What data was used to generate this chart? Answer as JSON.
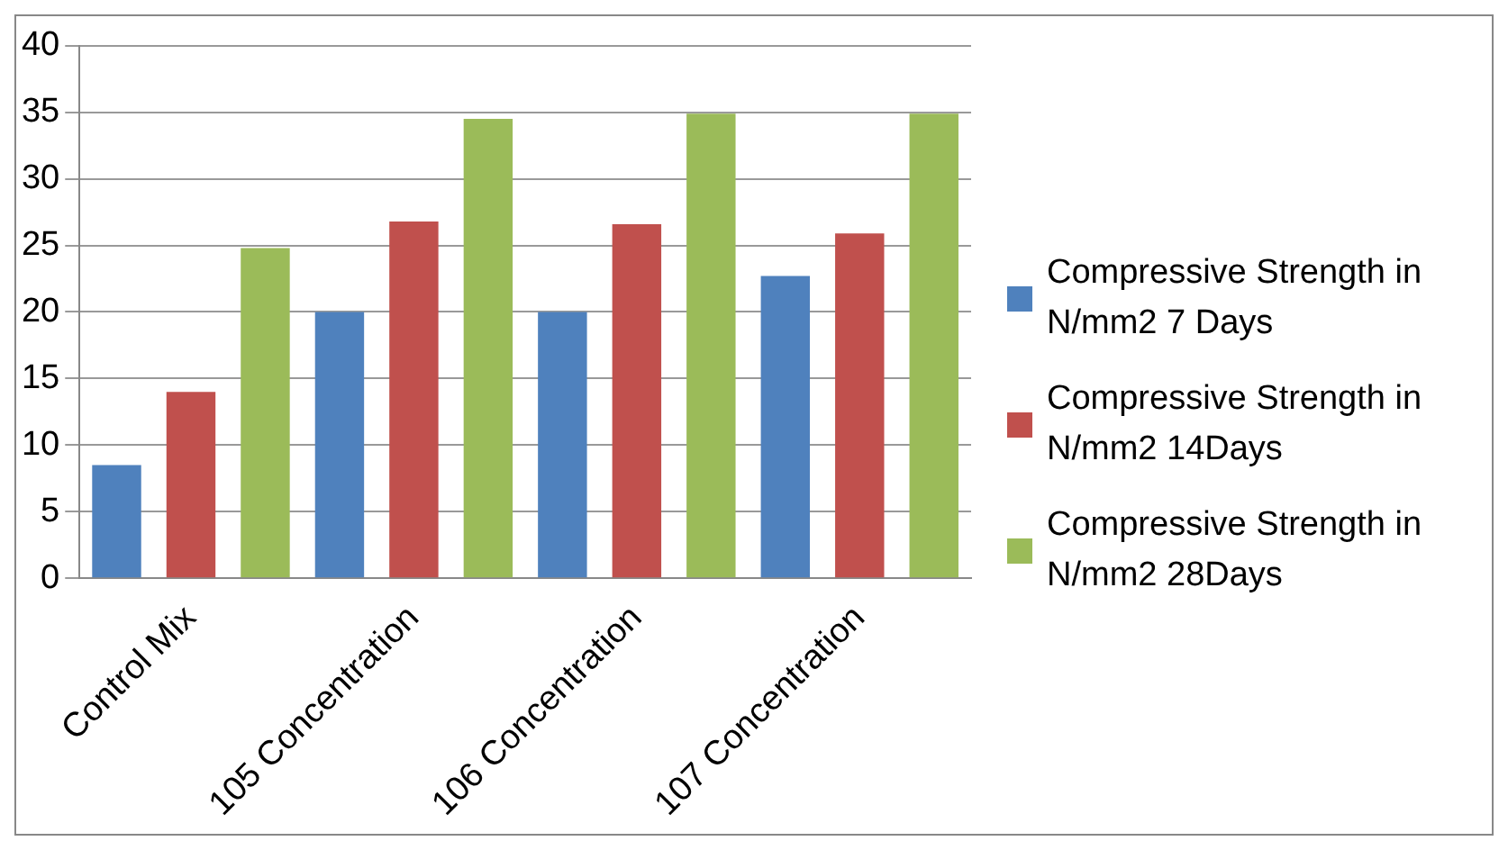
{
  "chart_data": {
    "type": "bar",
    "categories": [
      "Control Mix",
      "105 Concentration",
      "106 Concentration",
      "107 Concentration"
    ],
    "series": [
      {
        "name": "Compressive Strength in N/mm2 7 Days",
        "color": "#4f81bd",
        "values": [
          8.5,
          20,
          20,
          22.7
        ]
      },
      {
        "name": "Compressive Strength in N/mm2 14Days",
        "color": "#c0504d",
        "values": [
          14,
          26.8,
          26.6,
          25.9
        ]
      },
      {
        "name": "Compressive Strength in N/mm2 28Days",
        "color": "#9bbb59",
        "values": [
          24.8,
          34.5,
          34.9,
          34.9
        ]
      }
    ],
    "ylim": [
      0,
      40
    ],
    "yticks": [
      0,
      5,
      10,
      15,
      20,
      25,
      30,
      35,
      40
    ],
    "grid": "y",
    "legend": "right"
  }
}
